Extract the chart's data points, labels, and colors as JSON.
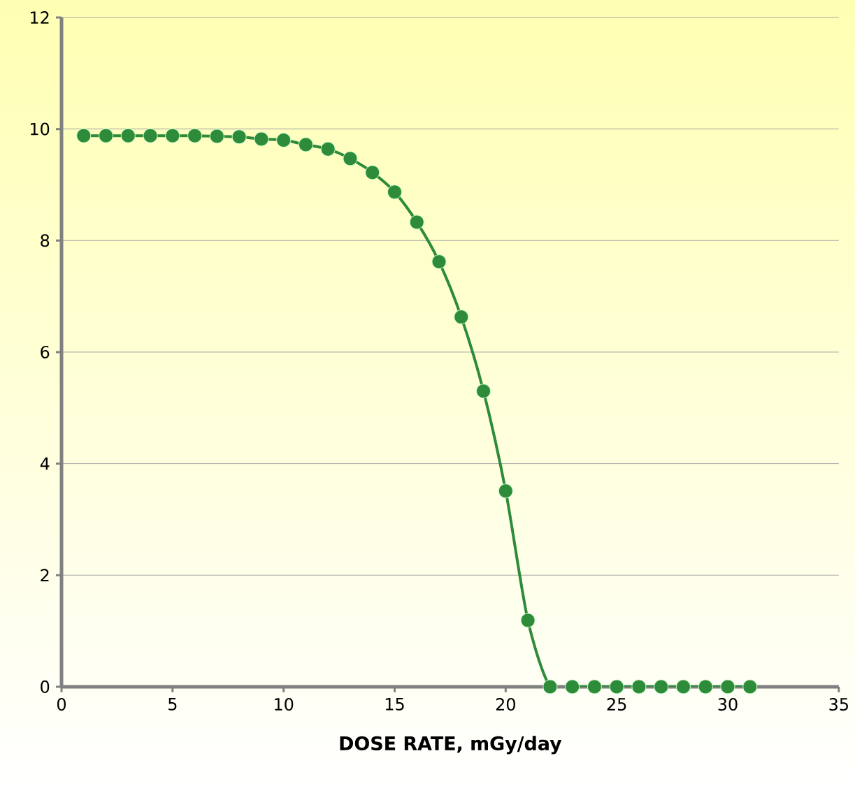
{
  "chart_data": {
    "type": "line",
    "xlabel": "DOSE RATE, mGy/day",
    "x": [
      1,
      2,
      3,
      4,
      5,
      6,
      7,
      8,
      9,
      10,
      11,
      12,
      13,
      14,
      15,
      16,
      17,
      18,
      19,
      20,
      21,
      22,
      23,
      24,
      25,
      26,
      27,
      28,
      29,
      30,
      31
    ],
    "values": [
      9.88,
      9.88,
      9.88,
      9.88,
      9.88,
      9.88,
      9.87,
      9.86,
      9.82,
      9.8,
      9.72,
      9.64,
      9.47,
      9.22,
      8.87,
      8.33,
      7.62,
      6.63,
      5.3,
      3.51,
      1.19,
      0,
      0,
      0,
      0,
      0,
      0,
      0,
      0,
      0,
      0
    ],
    "color": "#2e8b3a",
    "marker": "circle",
    "line_style": "solid",
    "grid": "y",
    "xlim": [
      0,
      35
    ],
    "xticks": [
      0,
      5,
      10,
      15,
      20,
      25,
      30,
      35
    ],
    "ylim": [
      0,
      12
    ],
    "yticks": [
      0,
      2,
      4,
      6,
      8,
      10,
      12
    ]
  }
}
